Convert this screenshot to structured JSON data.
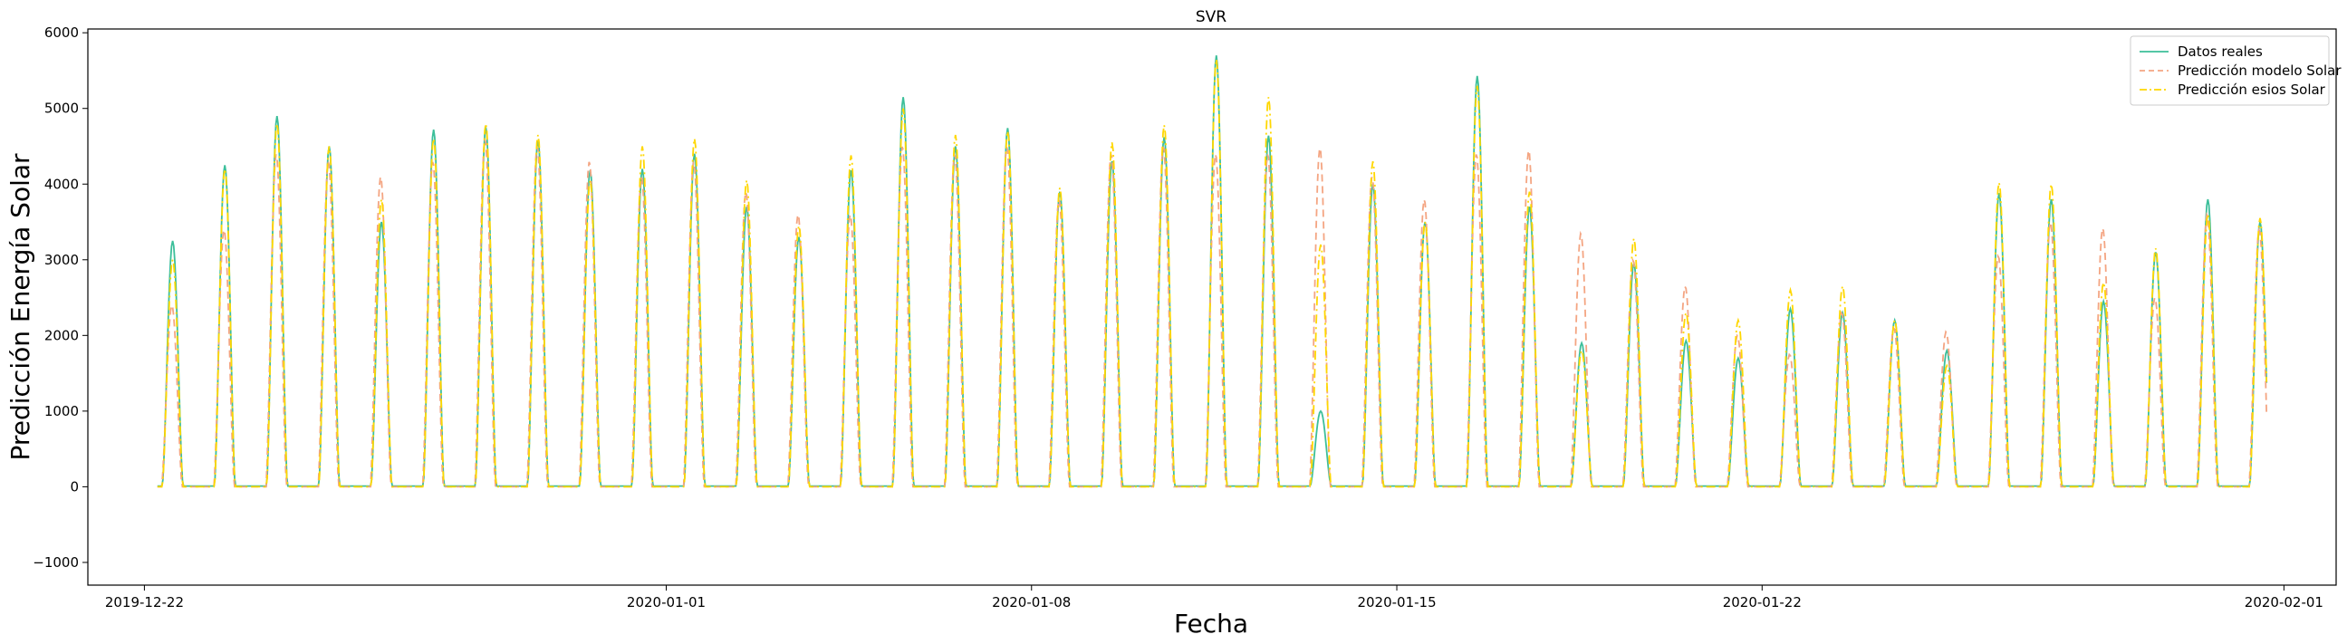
{
  "chart_data": {
    "type": "line",
    "title": "SVR",
    "xlabel": "Fecha",
    "ylabel": "Predicción Energía Solar",
    "xlim": [
      "2019-12-20T22:00",
      "2020-02-02T00:00"
    ],
    "ylim": [
      -1300,
      6050
    ],
    "x_ticks": [
      "2019-12-22",
      "2020-01-01",
      "2020-01-08",
      "2020-01-15",
      "2020-01-22",
      "2020-02-01"
    ],
    "y_ticks": [
      -1000,
      0,
      1000,
      2000,
      3000,
      4000,
      5000,
      6000
    ],
    "grid": false,
    "legend": "top-right",
    "start_date": "2019-12-22",
    "day_labels": [
      "2019-12-22",
      "2019-12-23",
      "2019-12-24",
      "2019-12-25",
      "2019-12-26",
      "2019-12-27",
      "2019-12-28",
      "2019-12-29",
      "2019-12-30",
      "2019-12-31",
      "2020-01-01",
      "2020-01-02",
      "2020-01-03",
      "2020-01-04",
      "2020-01-05",
      "2020-01-06",
      "2020-01-07",
      "2020-01-08",
      "2020-01-09",
      "2020-01-10",
      "2020-01-11",
      "2020-01-12",
      "2020-01-13",
      "2020-01-14",
      "2020-01-15",
      "2020-01-16",
      "2020-01-17",
      "2020-01-18",
      "2020-01-19",
      "2020-01-20",
      "2020-01-21",
      "2020-01-22",
      "2020-01-23",
      "2020-01-24",
      "2020-01-25",
      "2020-01-26",
      "2020-01-27",
      "2020-01-28",
      "2020-01-29",
      "2020-01-30",
      "2020-01-31"
    ],
    "series": [
      {
        "name": "Datos reales",
        "color": "#3cbf9a",
        "dash": "solid",
        "daily_peaks": [
          3250,
          4250,
          4900,
          4500,
          3500,
          4720,
          4750,
          4580,
          4180,
          4200,
          4400,
          3700,
          3300,
          4180,
          5150,
          4500,
          4740,
          3900,
          4300,
          4620,
          5700,
          4640,
          1000,
          4000,
          3500,
          5430,
          3700,
          1900,
          2950,
          1930,
          1700,
          2350,
          2300,
          2200,
          1800,
          3880,
          3800,
          2450,
          3100,
          3800,
          3500
        ]
      },
      {
        "name": "Predicción modelo Solar",
        "color": "#f4a582",
        "dash": "dashed",
        "daily_peaks": [
          2400,
          3400,
          4400,
          4300,
          4100,
          4300,
          4600,
          4500,
          4300,
          4100,
          4300,
          3900,
          3600,
          3600,
          4500,
          4400,
          4500,
          3800,
          4400,
          4500,
          4400,
          4400,
          4480,
          4100,
          3800,
          4400,
          4450,
          3350,
          3000,
          2650,
          2000,
          1750,
          2300,
          2100,
          2050,
          3050,
          3500,
          3420,
          2500,
          3600,
          3400
        ]
      },
      {
        "name": "Predicción esios Solar",
        "color": "#ffd700",
        "dash": "dashdot",
        "daily_peaks": [
          3000,
          4200,
          4800,
          4500,
          3800,
          4600,
          4800,
          4650,
          4050,
          4500,
          4600,
          4050,
          3450,
          4380,
          5000,
          4650,
          4700,
          3950,
          4550,
          4780,
          5650,
          5150,
          3200,
          4300,
          3500,
          5300,
          3900,
          1800,
          3280,
          2300,
          2200,
          2600,
          2650,
          2200,
          1600,
          4020,
          4000,
          2700,
          3150,
          3600,
          3550
        ]
      }
    ]
  }
}
